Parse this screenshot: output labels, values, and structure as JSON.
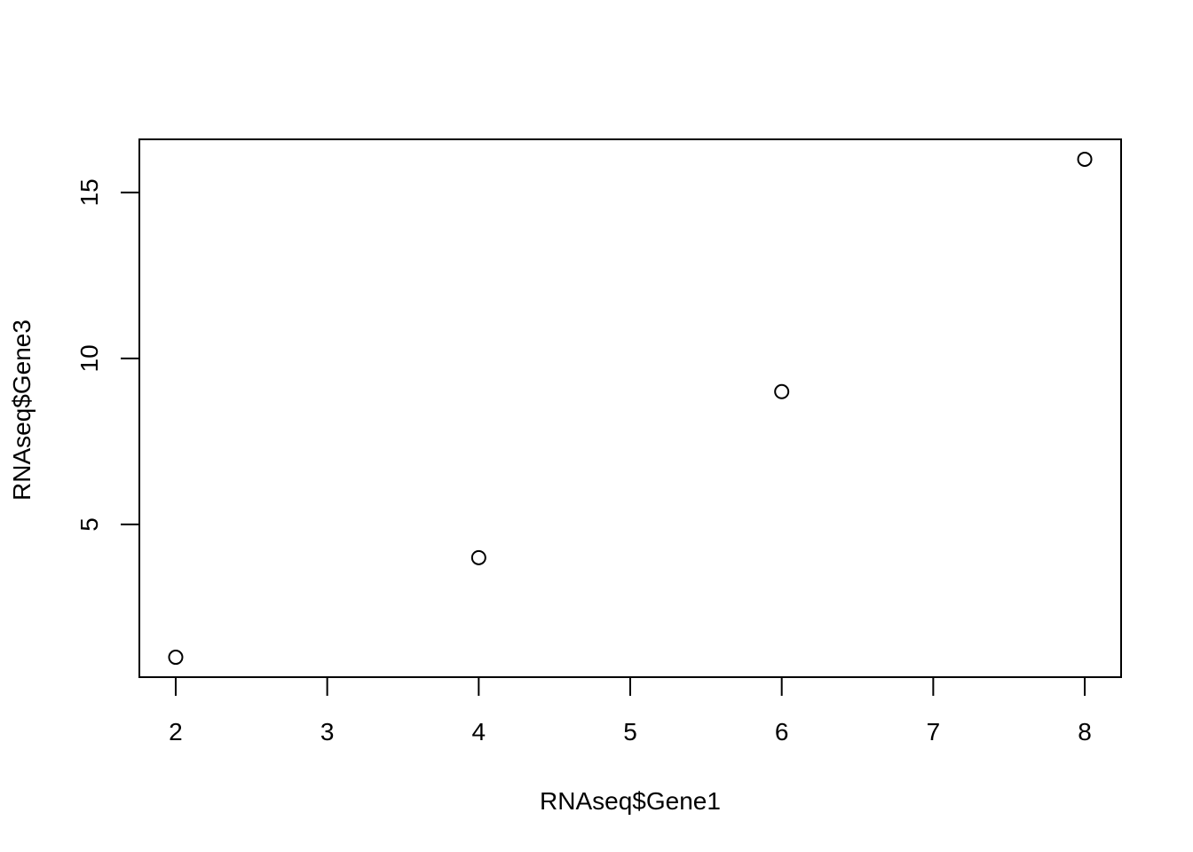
{
  "chart_data": {
    "type": "scatter",
    "title": "",
    "xlabel": "RNAseq$Gene1",
    "ylabel": "RNAseq$Gene3",
    "x": [
      2,
      4,
      6,
      8
    ],
    "y": [
      1,
      4,
      9,
      16
    ],
    "xlim": [
      1.76,
      8.24
    ],
    "ylim": [
      0.4,
      16.6
    ],
    "xticks": [
      "2",
      "3",
      "4",
      "5",
      "6",
      "7",
      "8"
    ],
    "yticks": [
      "5",
      "10",
      "15"
    ],
    "grid": false,
    "marker": "open-circle",
    "color": "#000000"
  }
}
